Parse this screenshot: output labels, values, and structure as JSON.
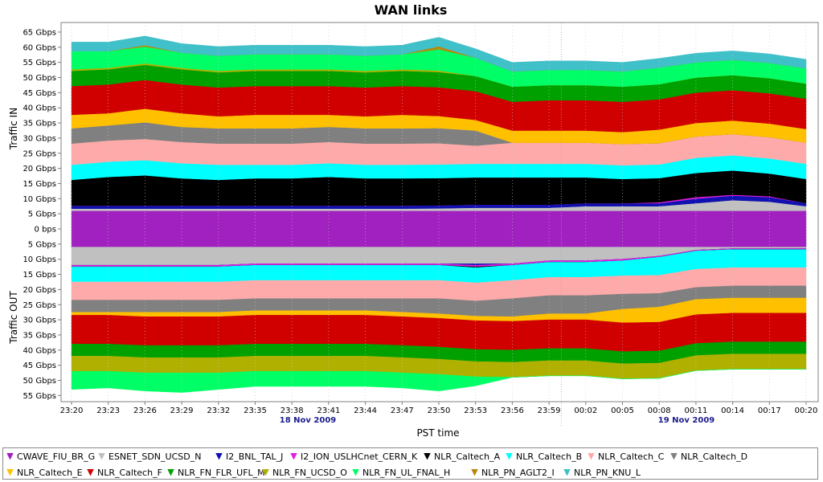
{
  "chart_data": {
    "type": "area",
    "title": "WAN links",
    "ylabel_top": "Traffic IN",
    "ylabel_bottom": "Traffic OUT",
    "xlabel": "PST time",
    "date_labels": [
      "18 Nov 2009",
      "19 Nov 2009"
    ],
    "x_ticks": [
      "23:20",
      "23:23",
      "23:26",
      "23:29",
      "23:32",
      "23:35",
      "23:38",
      "23:41",
      "23:44",
      "23:47",
      "23:50",
      "23:53",
      "23:56",
      "23:59",
      "00:02",
      "00:05",
      "00:08",
      "00:11",
      "00:14",
      "00:17",
      "00:20"
    ],
    "y_ticks_in": [
      "65 Gbps",
      "60 Gbps",
      "55 Gbps",
      "50 Gbps",
      "45 Gbps",
      "40 Gbps",
      "35 Gbps",
      "30 Gbps",
      "25 Gbps",
      "20 Gbps",
      "15 Gbps",
      "10 Gbps",
      "5 Gbps"
    ],
    "y_tick_zero": "0 bps",
    "y_ticks_out": [
      "5 Gbps",
      "10 Gbps",
      "15 Gbps",
      "20 Gbps",
      "25 Gbps",
      "30 Gbps",
      "35 Gbps",
      "40 Gbps",
      "45 Gbps",
      "50 Gbps",
      "55 Gbps"
    ],
    "ylim_in": [
      0,
      67
    ],
    "ylim_out": [
      0,
      57
    ],
    "grid": true,
    "legend_position": "bottom",
    "series_in": [
      {
        "name": "CWAVE_FIU_BR_G",
        "color": "#a020c0",
        "values": [
          6,
          6,
          6,
          6,
          6,
          6,
          6,
          6,
          6,
          6,
          6,
          6,
          6,
          6,
          6,
          6,
          6,
          6,
          6,
          6,
          6
        ]
      },
      {
        "name": "ESNET_SDN_UCSD_N",
        "color": "#c0c0c0",
        "values": [
          0.7,
          0.7,
          0.7,
          0.7,
          0.7,
          0.7,
          0.7,
          0.7,
          0.7,
          0.7,
          0.8,
          1,
          1,
          1,
          1.5,
          1.5,
          1.5,
          2.5,
          3.5,
          3,
          1.5
        ]
      },
      {
        "name": "I2_BNL_TAL_J",
        "color": "#1010b0",
        "values": [
          1,
          1,
          1,
          1,
          1,
          1,
          1,
          1,
          1,
          1,
          1,
          1,
          1,
          1,
          1,
          1,
          1,
          1.5,
          1.5,
          1.5,
          1
        ]
      },
      {
        "name": "I2_ION_USLHCnet_CERN_K",
        "color": "#e020e0",
        "values": [
          0,
          0,
          0,
          0,
          0,
          0,
          0,
          0,
          0,
          0,
          0,
          0,
          0,
          0,
          0,
          0,
          0.3,
          0.5,
          0.3,
          0.3,
          0
        ]
      },
      {
        "name": "NLR_Caltech_A",
        "color": "#000000",
        "values": [
          8.5,
          9.5,
          10,
          9,
          8.5,
          9,
          9,
          9.5,
          9,
          9,
          9,
          9,
          9,
          9,
          8.5,
          8,
          8,
          8,
          8,
          7.5,
          8
        ]
      },
      {
        "name": "NLR_Caltech_B",
        "color": "#00ffff",
        "values": [
          5,
          5,
          5,
          5,
          5,
          4.5,
          4.5,
          4.5,
          4.5,
          4.5,
          4.5,
          4.5,
          4.5,
          4.5,
          4.5,
          4.5,
          4.5,
          5,
          5,
          5,
          5
        ]
      },
      {
        "name": "NLR_Caltech_C",
        "color": "#ffaaaa",
        "values": [
          7,
          7,
          7,
          7,
          7,
          7,
          7,
          7,
          7,
          7,
          7,
          6,
          7,
          7,
          7,
          7,
          7,
          7,
          7,
          7,
          7
        ]
      },
      {
        "name": "NLR_Caltech_D",
        "color": "#808080",
        "values": [
          5,
          5,
          5.5,
          5,
          5,
          5,
          5,
          5,
          5,
          5,
          5,
          5,
          0,
          0,
          0,
          0,
          0,
          0,
          0,
          0,
          0
        ]
      },
      {
        "name": "NLR_Caltech_E",
        "color": "#ffc000",
        "values": [
          4.5,
          4,
          4.5,
          4.5,
          4,
          4.5,
          4.5,
          4,
          4,
          4.5,
          4,
          3.5,
          4,
          4,
          4,
          4,
          4.5,
          4.5,
          4.5,
          4.5,
          4.5
        ]
      },
      {
        "name": "NLR_Caltech_F",
        "color": "#d00000",
        "values": [
          9.5,
          9.5,
          9.5,
          9.5,
          9.5,
          9.5,
          9.5,
          9.5,
          9.5,
          9.5,
          9.5,
          9.5,
          9.5,
          10,
          10,
          10,
          10,
          10,
          10,
          10,
          10
        ]
      },
      {
        "name": "NLR_FN_FLR_UFL_M",
        "color": "#00a000",
        "values": [
          5,
          5,
          5,
          5,
          5,
          5,
          5,
          5,
          5,
          5,
          5,
          5,
          5,
          5,
          5,
          5,
          5,
          5,
          5,
          5,
          5
        ]
      },
      {
        "name": "NLR_FN_UCSD_O",
        "color": "#b0b000",
        "values": [
          0.5,
          0.5,
          0.5,
          0.5,
          0.5,
          0.5,
          0.5,
          0.5,
          0.5,
          0.5,
          0.5,
          0,
          0,
          0,
          0,
          0,
          0,
          0,
          0,
          0,
          0
        ]
      },
      {
        "name": "NLR_FN_UL_FNAL_H",
        "color": "#00ff66",
        "values": [
          6,
          5.5,
          5.5,
          5,
          5,
          5,
          5,
          5,
          5,
          5,
          7,
          6,
          5,
          5,
          5,
          5,
          5.5,
          5,
          5,
          5,
          5
        ]
      },
      {
        "name": "NLR_PN_AGLT2_I",
        "color": "#b8860b",
        "values": [
          0,
          0,
          0.5,
          0,
          0,
          0,
          0,
          0,
          0,
          0,
          1,
          0,
          0,
          0,
          0,
          0,
          0,
          0,
          0,
          0,
          0
        ]
      },
      {
        "name": "NLR_PN_KNU_L",
        "color": "#40c0c8",
        "values": [
          3,
          3,
          3,
          3,
          3,
          3,
          3,
          3,
          3,
          3,
          3,
          3,
          3,
          3,
          3,
          3,
          3,
          3,
          3,
          3,
          3
        ]
      }
    ],
    "series_out": [
      {
        "name": "CWAVE_FIU_BR_G",
        "color": "#a020c0",
        "values": [
          6,
          6,
          6,
          6,
          6,
          6,
          6,
          6,
          6,
          6,
          6,
          6,
          6,
          6,
          6,
          6,
          6,
          6,
          6,
          6,
          6
        ]
      },
      {
        "name": "ESNET_SDN_UCSD_N",
        "color": "#c0c0c0",
        "values": [
          6,
          6,
          6,
          6,
          6,
          5.5,
          5.5,
          5.5,
          5.5,
          5.5,
          5.5,
          5.5,
          5.5,
          4.5,
          4.5,
          4,
          3,
          1,
          0.5,
          0.5,
          0.5
        ]
      },
      {
        "name": "I2_BNL_TAL_J",
        "color": "#1010b0",
        "values": [
          0,
          0,
          0,
          0,
          0,
          0,
          0,
          0,
          0,
          0,
          0,
          0.5,
          0,
          0,
          0,
          0,
          0,
          0,
          0,
          0,
          0
        ]
      },
      {
        "name": "I2_ION_USLHCnet_CERN_K",
        "color": "#e020e0",
        "values": [
          0.5,
          0.5,
          0.5,
          0.5,
          0.5,
          0.5,
          0.5,
          0.5,
          0.5,
          0.5,
          0.5,
          0.5,
          0.5,
          0.5,
          0.5,
          0.5,
          0.3,
          0.3,
          0.3,
          0.3,
          0.3
        ]
      },
      {
        "name": "NLR_Caltech_A",
        "color": "#000000",
        "values": [
          0,
          0,
          0,
          0,
          0,
          0,
          0,
          0,
          0,
          0,
          0,
          0.3,
          0,
          0,
          0,
          0,
          0,
          0,
          0,
          0,
          0
        ]
      },
      {
        "name": "NLR_Caltech_B",
        "color": "#00ffff",
        "values": [
          5,
          5,
          5,
          5,
          5,
          5,
          5,
          5,
          5,
          5,
          5,
          5,
          5,
          5,
          5,
          5,
          6,
          6,
          6,
          6,
          6
        ]
      },
      {
        "name": "NLR_Caltech_C",
        "color": "#ffaaaa",
        "values": [
          6,
          6,
          6,
          6,
          6,
          6,
          6,
          6,
          6,
          6,
          6,
          6,
          6,
          6,
          6,
          6,
          6,
          6,
          6,
          6,
          6
        ]
      },
      {
        "name": "NLR_Caltech_D",
        "color": "#808080",
        "values": [
          4,
          4,
          4,
          4,
          4,
          4,
          4,
          4,
          4,
          4.5,
          5,
          5,
          6,
          6,
          6,
          5,
          4.5,
          4,
          4,
          4,
          4
        ]
      },
      {
        "name": "NLR_Caltech_E",
        "color": "#ffc000",
        "values": [
          1,
          1,
          1.5,
          1.5,
          1.5,
          1.5,
          1.5,
          1.5,
          1.5,
          1.5,
          1.5,
          1.5,
          1.5,
          2,
          2,
          4.5,
          5,
          5,
          5,
          5,
          5
        ]
      },
      {
        "name": "NLR_Caltech_F",
        "color": "#d00000",
        "values": [
          9.5,
          9.5,
          9.5,
          9.5,
          9.5,
          9.5,
          9.5,
          9.5,
          9.5,
          9.5,
          9.5,
          9.5,
          9.5,
          9.5,
          9.5,
          9.5,
          9.5,
          9.5,
          9.5,
          9.5,
          9.5
        ]
      },
      {
        "name": "NLR_FN_FLR_UFL_M",
        "color": "#00a000",
        "values": [
          4,
          4,
          4,
          4,
          4,
          4,
          4,
          4,
          4,
          4,
          4,
          4,
          4,
          4,
          4,
          4,
          4,
          4,
          4,
          4,
          4
        ]
      },
      {
        "name": "NLR_FN_UCSD_O",
        "color": "#b0b000",
        "values": [
          5,
          5,
          5,
          5,
          5,
          5,
          5,
          5,
          5,
          5,
          5,
          5,
          5,
          5,
          5,
          5,
          5,
          5,
          5,
          5,
          5
        ]
      },
      {
        "name": "NLR_FN_UL_FNAL_H",
        "color": "#00ff66",
        "values": [
          6,
          5.5,
          6,
          6.5,
          5.5,
          5,
          5,
          5,
          5,
          5,
          5.5,
          3,
          0,
          0,
          0,
          0,
          0,
          0,
          0,
          0,
          0
        ]
      },
      {
        "name": "NLR_PN_AGLT2_I",
        "color": "#b8860b",
        "values": [
          0,
          0,
          0,
          0,
          0,
          0,
          0,
          0,
          0,
          0,
          0,
          0,
          0,
          0,
          0,
          0,
          0,
          0,
          0,
          0,
          0
        ]
      },
      {
        "name": "NLR_PN_KNU_L",
        "color": "#40c0c8",
        "values": [
          0,
          0,
          0,
          0,
          0,
          0,
          0,
          0,
          0,
          0,
          0,
          0,
          0,
          0,
          0,
          0,
          0,
          0,
          0,
          0,
          0
        ]
      }
    ]
  },
  "legend": [
    {
      "name": "CWAVE_FIU_BR_G",
      "color": "#a020c0"
    },
    {
      "name": "ESNET_SDN_UCSD_N",
      "color": "#c0c0c0"
    },
    {
      "name": "I2_BNL_TAL_J",
      "color": "#1010b0"
    },
    {
      "name": "I2_ION_USLHCnet_CERN_K",
      "color": "#e020e0"
    },
    {
      "name": "NLR_Caltech_A",
      "color": "#000000"
    },
    {
      "name": "NLR_Caltech_B",
      "color": "#00ffff"
    },
    {
      "name": "NLR_Caltech_C",
      "color": "#ffaaaa"
    },
    {
      "name": "NLR_Caltech_D",
      "color": "#808080"
    },
    {
      "name": "NLR_Caltech_E",
      "color": "#ffc000"
    },
    {
      "name": "NLR_Caltech_F",
      "color": "#d00000"
    },
    {
      "name": "NLR_FN_FLR_UFL_M",
      "color": "#00a000"
    },
    {
      "name": "NLR_FN_UCSD_O",
      "color": "#b0b000"
    },
    {
      "name": "NLR_FN_UL_FNAL_H",
      "color": "#00ff66"
    },
    {
      "name": "NLR_PN_AGLT2_I",
      "color": "#b8860b"
    },
    {
      "name": "NLR_PN_KNU_L",
      "color": "#40c0c8"
    }
  ]
}
